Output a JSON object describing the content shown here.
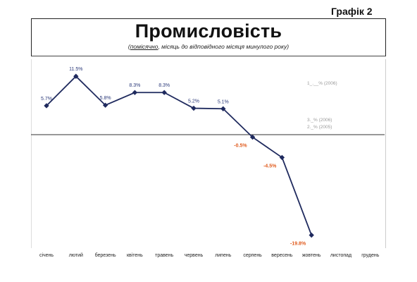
{
  "header": {
    "graph_number": "Графік 2",
    "title": "Промисловість",
    "subtitle_open": "(",
    "subtitle_underlined": "помісячно",
    "subtitle_rest": ", місяць до відповідного місяця минулого року)"
  },
  "chart_data": {
    "type": "line",
    "title": "Промисловість",
    "categories": [
      "січень",
      "лютий",
      "березень",
      "квітень",
      "травень",
      "червень",
      "липень",
      "серпень",
      "вересень",
      "жовтень",
      "листопад",
      "грудень"
    ],
    "series": [
      {
        "values": [
          5.7,
          11.5,
          5.8,
          8.3,
          8.3,
          5.2,
          5.1,
          -0.5,
          -4.5,
          -19.8,
          null,
          null
        ]
      }
    ],
    "data_labels": [
      "5.7%",
      "11.5%",
      "5.8%",
      "8.3%",
      "8.3%",
      "5.2%",
      "5.1%",
      "-0.5%",
      "-4.5%",
      "-19.8%"
    ],
    "negative_label_color": "#e05a1c",
    "positive_label_color": "#2c3a7a",
    "line_color": "#1f2a5e",
    "zero_line": true,
    "ylim": [
      -22,
      15
    ],
    "legend_notes": [
      "1_.__% (2006)",
      "3._% (2006)",
      "2._% (2005)"
    ],
    "legend_placement": "right"
  }
}
